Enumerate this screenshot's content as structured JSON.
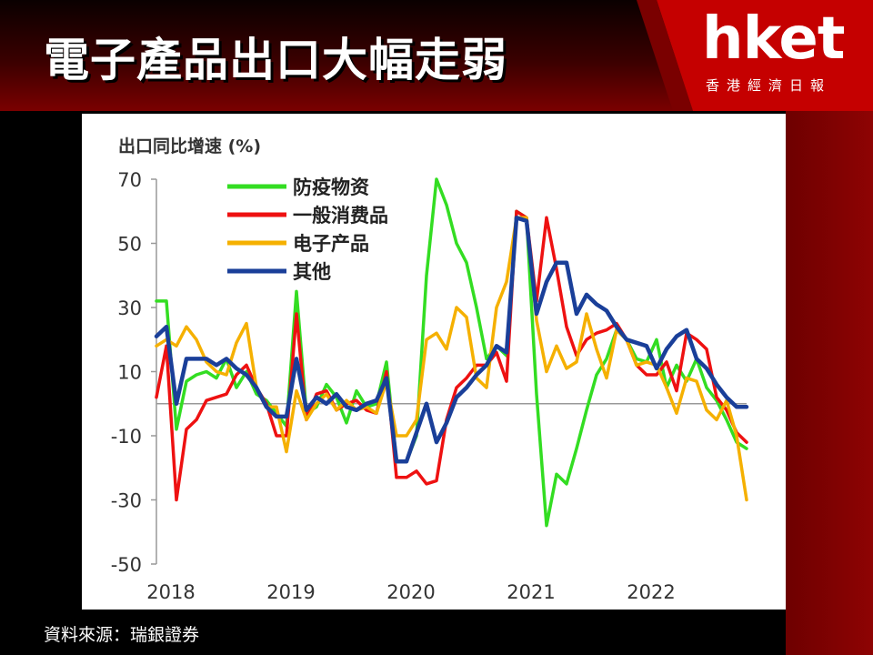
{
  "header": {
    "title": "電子產品出口大幅走弱",
    "logo": "hket",
    "logo_subtitle": "香港經濟日報"
  },
  "source_note": "資料來源：瑞銀證券",
  "colors": {
    "header_red": "#c00000",
    "panel_bg": "#ffffff"
  },
  "chart_data": {
    "type": "line",
    "ylabel": "出口同比增速 (%)",
    "ylim": [
      -50,
      70
    ],
    "yticks": [
      70,
      50,
      30,
      10,
      -10,
      -30,
      -50
    ],
    "xlim": [
      0,
      59
    ],
    "xticks": [
      {
        "value": 0,
        "label": "2018"
      },
      {
        "value": 12,
        "label": "2019"
      },
      {
        "value": 24,
        "label": "2020"
      },
      {
        "value": 36,
        "label": "2021"
      },
      {
        "value": 48,
        "label": "2022"
      }
    ],
    "zero_line": true,
    "legend_position": "top-left",
    "series": [
      {
        "name": "防疫物资",
        "color": "#33dd22",
        "values": [
          32,
          32,
          -8,
          7,
          9,
          10,
          8,
          14,
          5,
          10,
          3,
          1,
          -3,
          -7,
          35,
          -3,
          -1,
          6,
          2,
          -6,
          4,
          -1,
          0,
          13,
          -18,
          -18,
          -10,
          40,
          70,
          62,
          50,
          44,
          30,
          14,
          18,
          15,
          60,
          58,
          3,
          -38,
          -22,
          -25,
          -14,
          -2,
          9,
          14,
          23,
          20,
          14,
          13,
          20,
          5,
          12,
          7,
          14,
          5,
          1,
          -5,
          -12,
          -14
        ]
      },
      {
        "name": "一般消费品",
        "color": "#ee1111",
        "values": [
          2,
          18,
          -30,
          -8,
          -5,
          1,
          2,
          3,
          9,
          12,
          5,
          0,
          -10,
          -10,
          28,
          -5,
          3,
          4,
          -2,
          0,
          1,
          -2,
          -3,
          10,
          -23,
          -23,
          -21,
          -25,
          -24,
          -5,
          5,
          8,
          12,
          12,
          16,
          7,
          60,
          58,
          32,
          58,
          42,
          24,
          15,
          20,
          22,
          23,
          25,
          20,
          12,
          9,
          9,
          13,
          4,
          22,
          20,
          17,
          2,
          -2,
          -9,
          -12
        ]
      },
      {
        "name": "电子产品",
        "color": "#f5b000",
        "values": [
          18,
          20,
          18,
          24,
          20,
          13,
          10,
          9,
          19,
          25,
          5,
          -1,
          -1,
          -15,
          4,
          -5,
          0,
          3,
          -2,
          1,
          -2,
          -1,
          -3,
          7,
          -10,
          -10,
          -5,
          20,
          22,
          17,
          30,
          27,
          8,
          5,
          30,
          38,
          58,
          58,
          26,
          10,
          18,
          11,
          13,
          28,
          17,
          8,
          23,
          20,
          12,
          13,
          12,
          5,
          -3,
          8,
          7,
          -2,
          -5,
          1,
          -10,
          -30
        ]
      },
      {
        "name": "其他",
        "color": "#1a3f99",
        "values": [
          21,
          24,
          0,
          14,
          14,
          14,
          12,
          14,
          11,
          9,
          5,
          -1,
          -4,
          -4,
          14,
          -2,
          2,
          0,
          3,
          -1,
          -2,
          0,
          1,
          8,
          -18,
          -18,
          -9,
          0,
          -12,
          -6,
          2,
          5,
          9,
          12,
          18,
          16,
          58,
          57,
          28,
          38,
          44,
          44,
          28,
          34,
          31,
          29,
          24,
          20,
          19,
          18,
          11,
          17,
          21,
          23,
          14,
          11,
          6,
          2,
          -1,
          -1
        ]
      }
    ]
  }
}
